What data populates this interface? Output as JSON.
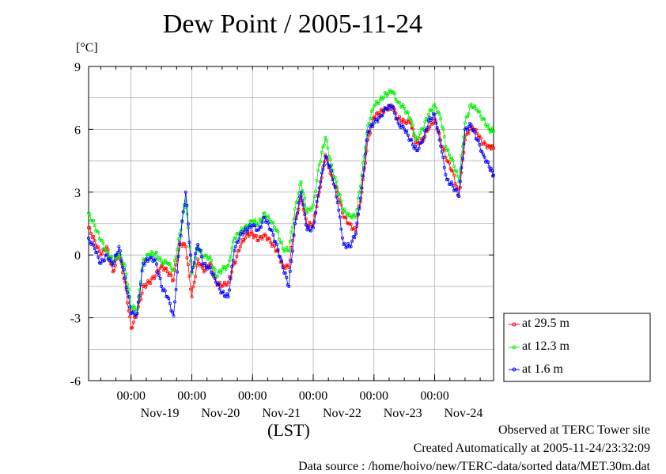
{
  "title": "Dew Point / 2005-11-24",
  "footer": {
    "observed": "Observed at TERC Tower site",
    "created": "Created Automatically at 2005-11-24/23:32:09",
    "source": "Data source : /home/hoivo/new/TERC-data/sorted  data/MET.30m.dat"
  },
  "colors": {
    "series_29_5": "#ff0000",
    "series_12_3": "#00ee00",
    "series_1_6": "#0000ff",
    "grid": "#999999"
  },
  "chart_data": {
    "type": "line",
    "ylabel": "[°C]",
    "xlabel": "(LST)",
    "ylim": [
      -6,
      9
    ],
    "xlim_days": [
      18.3,
      24.97
    ],
    "yticks": [
      "9",
      "6",
      "3",
      "0",
      "-3",
      "-6"
    ],
    "ytick_values": [
      9,
      6,
      3,
      0,
      -3,
      -6
    ],
    "xticks": [
      {
        "day": 19,
        "time": "00:00",
        "date": "Nov-19"
      },
      {
        "day": 20,
        "time": "00:00",
        "date": "Nov-20"
      },
      {
        "day": 21,
        "time": "00:00",
        "date": "Nov-21"
      },
      {
        "day": 22,
        "time": "00:00",
        "date": "Nov-22"
      },
      {
        "day": 23,
        "time": "00:00",
        "date": "Nov-23"
      },
      {
        "day": 24,
        "time": "00:00",
        "date": "Nov-24"
      }
    ],
    "grid": true,
    "legend_position": "right",
    "x": [
      18.3,
      18.4,
      18.5,
      18.6,
      18.7,
      18.8,
      18.9,
      19.0,
      19.1,
      19.2,
      19.3,
      19.4,
      19.5,
      19.6,
      19.7,
      19.8,
      19.9,
      20.0,
      20.1,
      20.2,
      20.3,
      20.4,
      20.5,
      20.6,
      20.7,
      20.8,
      20.9,
      21.0,
      21.1,
      21.2,
      21.3,
      21.4,
      21.5,
      21.6,
      21.7,
      21.8,
      21.9,
      22.0,
      22.1,
      22.2,
      22.3,
      22.4,
      22.5,
      22.6,
      22.7,
      22.8,
      22.9,
      23.0,
      23.1,
      23.2,
      23.3,
      23.4,
      23.5,
      23.6,
      23.7,
      23.8,
      23.9,
      24.0,
      24.1,
      24.2,
      24.3,
      24.4,
      24.5,
      24.6,
      24.7,
      24.8,
      24.9,
      24.97
    ],
    "series": [
      {
        "name": "at 29.5 m",
        "values": [
          1.3,
          0.7,
          0.0,
          0.4,
          -0.8,
          0.0,
          -1.3,
          -3.5,
          -2.8,
          -1.5,
          -1.3,
          -1.0,
          -0.5,
          -0.8,
          -1.2,
          0.6,
          0.4,
          -2.0,
          -0.2,
          -0.8,
          -0.4,
          -1.3,
          -1.5,
          -1.3,
          -0.4,
          0.4,
          1.0,
          1.0,
          0.7,
          1.0,
          0.6,
          0.2,
          -0.5,
          -0.6,
          1.5,
          2.8,
          1.4,
          1.5,
          3.0,
          4.8,
          3.8,
          3.0,
          1.8,
          1.5,
          1.1,
          3.0,
          5.5,
          6.6,
          6.8,
          7.0,
          7.1,
          6.5,
          6.4,
          6.3,
          5.3,
          5.5,
          6.0,
          6.5,
          5.5,
          4.5,
          4.0,
          2.8,
          5.5,
          6.2,
          5.8,
          5.3,
          5.2,
          5.1
        ]
      },
      {
        "name": "at 12.3 m",
        "values": [
          2.0,
          1.4,
          0.7,
          0.2,
          -0.3,
          0.0,
          -0.5,
          -2.5,
          -2.6,
          -0.2,
          0.0,
          0.1,
          -0.3,
          -0.4,
          -0.7,
          1.0,
          2.6,
          -0.9,
          0.4,
          -0.1,
          -0.1,
          -1.0,
          -0.7,
          -0.5,
          0.8,
          1.1,
          1.4,
          1.6,
          1.5,
          2.0,
          1.6,
          1.2,
          0.3,
          0.2,
          2.2,
          3.5,
          2.0,
          2.4,
          4.3,
          5.6,
          4.3,
          3.2,
          2.1,
          1.9,
          1.8,
          3.8,
          6.2,
          7.1,
          7.4,
          7.7,
          7.8,
          7.3,
          7.0,
          6.5,
          5.5,
          6.0,
          6.7,
          7.2,
          6.5,
          5.0,
          4.5,
          3.5,
          6.3,
          7.2,
          6.9,
          6.5,
          6.0,
          5.9
        ]
      },
      {
        "name": "at 1.6 m",
        "values": [
          0.8,
          0.3,
          -0.4,
          0.0,
          -0.5,
          0.4,
          -1.1,
          -2.8,
          -2.8,
          -0.4,
          -0.2,
          -0.2,
          -1.5,
          -2.0,
          -2.9,
          0.5,
          3.0,
          -0.8,
          0.5,
          -0.5,
          -0.6,
          -1.3,
          -1.8,
          -2.0,
          0.2,
          1.0,
          1.2,
          1.4,
          1.2,
          1.8,
          1.2,
          0.5,
          -0.6,
          -1.5,
          1.5,
          3.0,
          1.2,
          1.3,
          3.2,
          4.7,
          4.0,
          2.5,
          0.5,
          0.4,
          1.0,
          3.2,
          5.9,
          6.3,
          6.6,
          7.0,
          7.1,
          6.3,
          6.0,
          5.5,
          5.0,
          5.4,
          6.4,
          6.7,
          5.2,
          3.6,
          3.3,
          2.8,
          6.0,
          6.2,
          5.5,
          4.8,
          4.2,
          3.8
        ]
      }
    ]
  }
}
